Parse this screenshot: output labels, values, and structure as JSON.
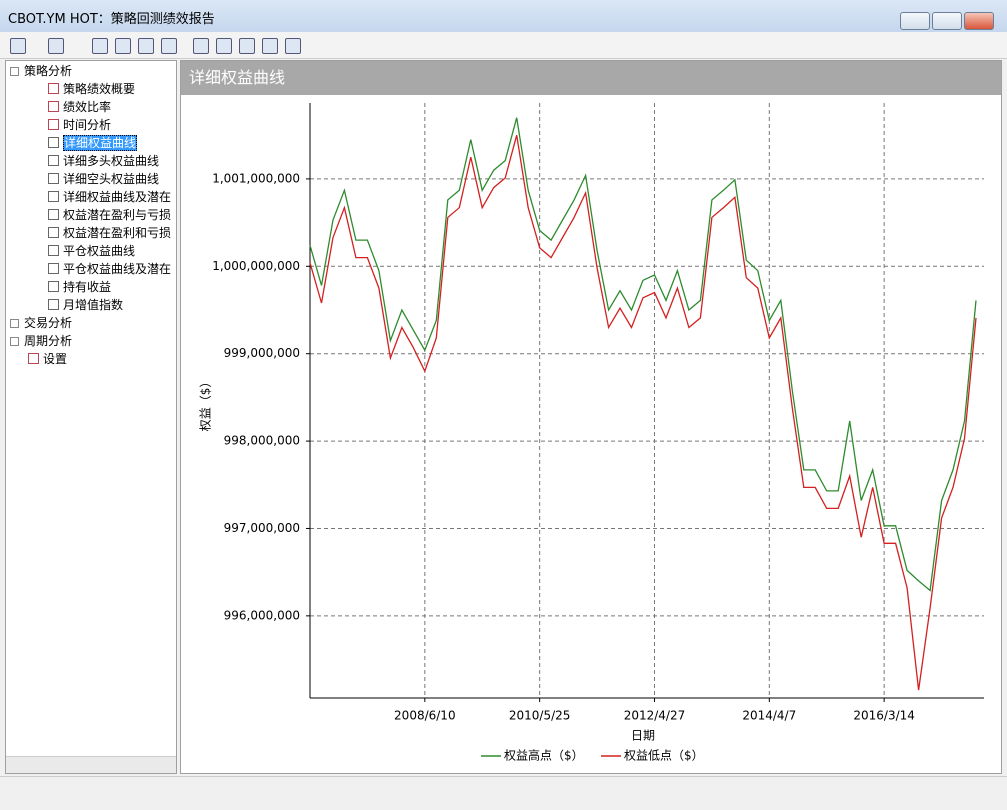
{
  "window": {
    "title": "CBOT.YM HOT：策略回测绩效报告"
  },
  "tree": {
    "groups": [
      {
        "label": "策略分析",
        "children": [
          "策略绩效概要",
          "绩效比率",
          "时间分析",
          "详细权益曲线",
          "详细多头权益曲线",
          "详细空头权益曲线",
          "详细权益曲线及潜在",
          "权益潜在盈利与亏损",
          "权益潜在盈利和亏损",
          "平仓权益曲线",
          "平仓权益曲线及潜在",
          "持有收益",
          "月增值指数"
        ]
      },
      {
        "label": "交易分析",
        "children": []
      },
      {
        "label": "周期分析",
        "children": []
      },
      {
        "label": "设置",
        "children": []
      }
    ],
    "selected": "详细权益曲线"
  },
  "panel_title": "详细权益曲线",
  "chart_data": {
    "type": "line",
    "x_label": "日期",
    "y_label": "权益（$）",
    "categories": [
      null,
      null,
      null,
      null,
      null,
      null,
      null,
      null,
      null,
      null,
      "2008/6/10",
      null,
      null,
      null,
      null,
      null,
      null,
      null,
      null,
      null,
      "2010/5/25",
      null,
      null,
      null,
      null,
      null,
      null,
      null,
      null,
      null,
      "2012/4/27",
      null,
      null,
      null,
      null,
      null,
      null,
      null,
      null,
      null,
      "2014/4/7",
      null,
      null,
      null,
      null,
      null,
      null,
      null,
      null,
      null,
      "2016/3/14",
      null,
      null,
      null,
      null,
      null,
      null,
      null,
      null
    ],
    "series": [
      {
        "name": "权益高点（$）",
        "color": "#2e8b2e",
        "values": [
          1000240000,
          999780000,
          1000530000,
          1000870000,
          1000300000,
          1000300000,
          999950000,
          999150000,
          999500000,
          999270000,
          999040000,
          999380000,
          1000760000,
          1000870000,
          1001450000,
          1000870000,
          1001100000,
          1001210000,
          1001700000,
          1000870000,
          1000410000,
          1000300000,
          1000530000,
          1000760000,
          1001040000,
          1000180000,
          999500000,
          999720000,
          999500000,
          999840000,
          999900000,
          999610000,
          999950000,
          999500000,
          999610000,
          1000760000,
          1000870000,
          1000990000,
          1000070000,
          999950000,
          999380000,
          999610000,
          998580000,
          997670000,
          997670000,
          997430000,
          997430000,
          998230000,
          997320000,
          997670000,
          997030000,
          997030000,
          996520000,
          996400000,
          996290000,
          997320000,
          997670000,
          998230000,
          999610000
        ]
      },
      {
        "name": "权益低点（$）",
        "color": "#d42020",
        "values": [
          1000040000,
          999580000,
          1000330000,
          1000670000,
          1000100000,
          1000100000,
          999750000,
          998950000,
          999300000,
          999070000,
          998800000,
          999180000,
          1000560000,
          1000670000,
          1001250000,
          1000670000,
          1000900000,
          1001010000,
          1001500000,
          1000670000,
          1000210000,
          1000100000,
          1000330000,
          1000560000,
          1000840000,
          999980000,
          999300000,
          999520000,
          999300000,
          999640000,
          999700000,
          999410000,
          999750000,
          999300000,
          999410000,
          1000560000,
          1000670000,
          1000790000,
          999870000,
          999750000,
          999180000,
          999410000,
          998380000,
          997470000,
          997470000,
          997230000,
          997230000,
          997600000,
          996900000,
          997470000,
          996830000,
          996830000,
          996320000,
          995150000,
          996090000,
          997120000,
          997470000,
          998030000,
          999410000
        ]
      }
    ],
    "ylim": [
      995060000,
      1001800000
    ],
    "yticks": [
      {
        "value": 996000000,
        "label": "996,000,000"
      },
      {
        "value": 997000000,
        "label": "997,000,000"
      },
      {
        "value": 998000000,
        "label": "998,000,000"
      },
      {
        "value": 999000000,
        "label": "999,000,000"
      },
      {
        "value": 1000000000,
        "label": "1,000,000,000"
      },
      {
        "value": 1001000000,
        "label": "1,001,000,000"
      }
    ],
    "grid": true,
    "legend": "bottom"
  }
}
